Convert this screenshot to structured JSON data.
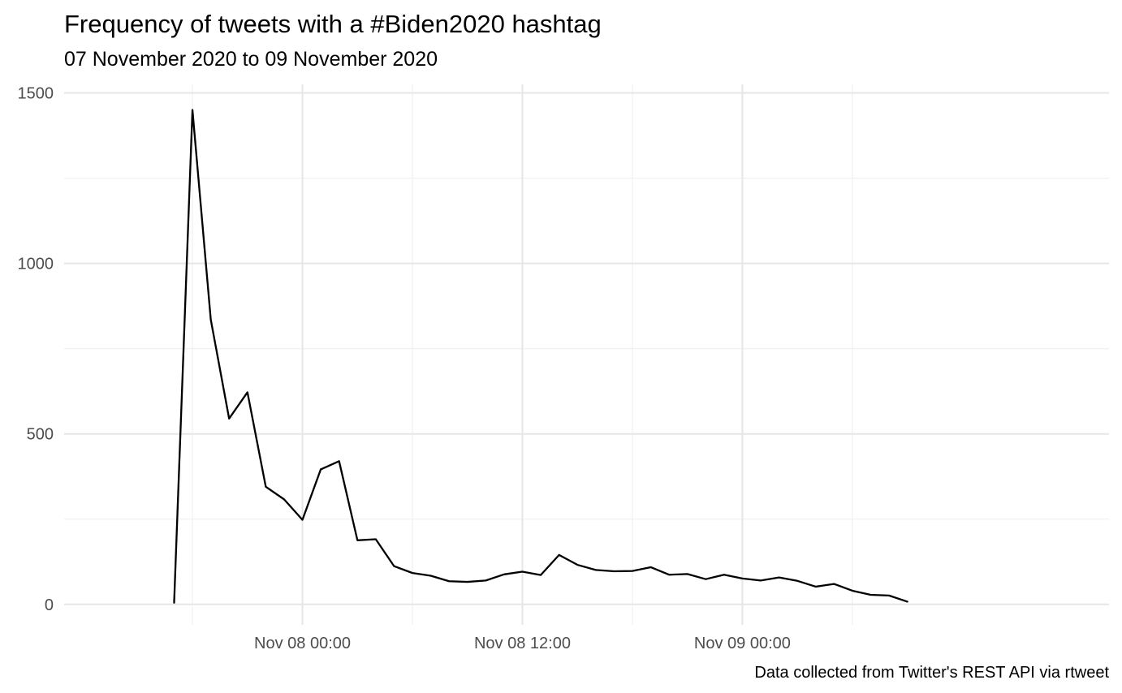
{
  "chart_data": {
    "type": "line",
    "title": "Frequency of tweets with a #Biden2020 hashtag",
    "subtitle": "07 November 2020 to 09 November 2020",
    "caption": "Data collected from Twitter's REST API via rtweet",
    "xlabel": "",
    "ylabel": "",
    "ylim": [
      -60,
      1525
    ],
    "xlim": [
      "2020-11-07 11:00",
      "2020-11-09 20:00"
    ],
    "y_ticks": [
      0,
      500,
      1000,
      1500
    ],
    "y_tick_labels": [
      "0",
      "500",
      "1000",
      "1500"
    ],
    "x_ticks": [
      "2020-11-08 00:00",
      "2020-11-08 12:00",
      "2020-11-09 00:00"
    ],
    "x_tick_labels": [
      "Nov 08 00:00",
      "Nov 08 12:00",
      "Nov 09 00:00"
    ],
    "x_minor_ticks": [
      "2020-11-07 18:00",
      "2020-11-08 06:00",
      "2020-11-08 18:00",
      "2020-11-09 06:00"
    ],
    "y_minor_ticks": [
      250,
      750,
      1250
    ],
    "grid": true,
    "legend": "none",
    "line_color": "#000000",
    "series": [
      {
        "x": [
          "2020-11-07 17:00",
          "2020-11-07 18:00",
          "2020-11-07 19:00",
          "2020-11-07 20:00",
          "2020-11-07 21:00",
          "2020-11-07 22:00",
          "2020-11-07 23:00",
          "2020-11-08 00:00",
          "2020-11-08 01:00",
          "2020-11-08 02:00",
          "2020-11-08 03:00",
          "2020-11-08 04:00",
          "2020-11-08 05:00",
          "2020-11-08 06:00",
          "2020-11-08 07:00",
          "2020-11-08 08:00",
          "2020-11-08 09:00",
          "2020-11-08 10:00",
          "2020-11-08 11:00",
          "2020-11-08 12:00",
          "2020-11-08 13:00",
          "2020-11-08 14:00",
          "2020-11-08 15:00",
          "2020-11-08 16:00",
          "2020-11-08 17:00",
          "2020-11-08 18:00",
          "2020-11-08 19:00",
          "2020-11-08 20:00",
          "2020-11-08 21:00",
          "2020-11-08 22:00",
          "2020-11-08 23:00",
          "2020-11-09 00:00",
          "2020-11-09 01:00",
          "2020-11-09 02:00",
          "2020-11-09 03:00",
          "2020-11-09 04:00",
          "2020-11-09 05:00",
          "2020-11-09 06:00",
          "2020-11-09 07:00",
          "2020-11-09 08:00",
          "2020-11-09 09:00"
        ],
        "values": [
          5,
          1450,
          835,
          545,
          622,
          345,
          308,
          248,
          396,
          420,
          188,
          191,
          112,
          92,
          84,
          68,
          66,
          70,
          88,
          96,
          86,
          145,
          116,
          101,
          97,
          98,
          109,
          87,
          89,
          74,
          87,
          76,
          70,
          79,
          69,
          52,
          60,
          40,
          28,
          26,
          8
        ]
      }
    ]
  }
}
